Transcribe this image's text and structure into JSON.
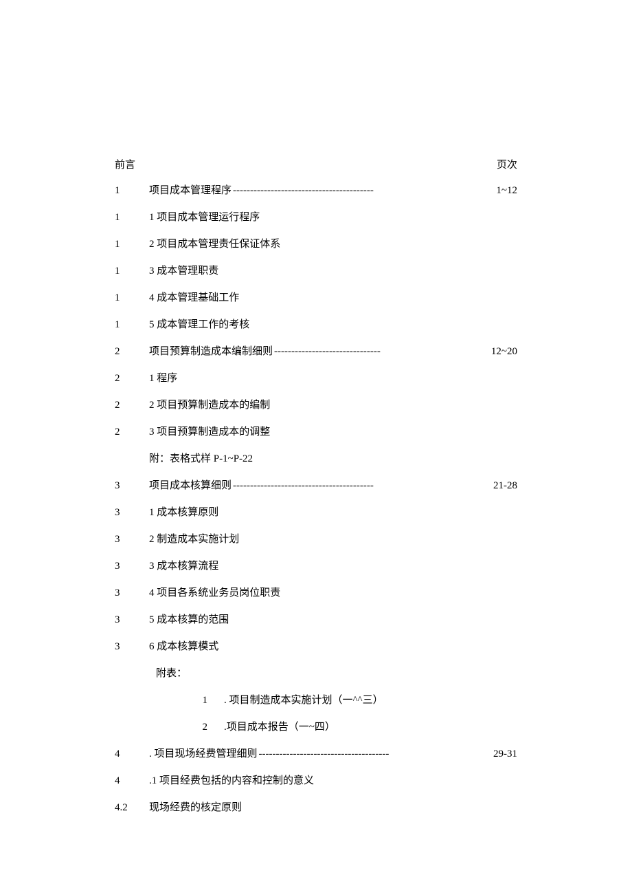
{
  "header": {
    "left": "前言",
    "right": "页次"
  },
  "rows": [
    {
      "num": "1",
      "text": "项目成本管理程序 ",
      "dashes": "-----------------------------------------",
      "page": "1~12"
    },
    {
      "num": "1",
      "text": "1 项目成本管理运行程序"
    },
    {
      "num": "1",
      "text": "2 项目成本管理责任保证体系"
    },
    {
      "num": "1",
      "text": "3 成本管理职责"
    },
    {
      "num": "1",
      "text": "4 成本管理基础工作"
    },
    {
      "num": "1",
      "text": "5 成本管理工作的考核"
    },
    {
      "num": "2",
      "text": "项目预算制造成本编制细则 ",
      "dashes": "-------------------------------",
      "page": "12~20"
    },
    {
      "num": "2",
      "text": "1 程序"
    },
    {
      "num": "2",
      "text": "2 项目预算制造成本的编制"
    },
    {
      "num": "2",
      "text": "3 项目预算制造成本的调整"
    },
    {
      "num": "",
      "text": "  附：表格式样 P-1~P-22",
      "indent": "indent0"
    },
    {
      "num": "3",
      "text": "项目成本核算细则 ",
      "dashes": "-----------------------------------------",
      "page": "21-28"
    },
    {
      "num": "3",
      "text": "1 成本核算原则"
    },
    {
      "num": "3",
      "text": "2 制造成本实施计划"
    },
    {
      "num": "3",
      "text": "3 成本核算流程"
    },
    {
      "num": "3",
      "text": "4 项目各系统业务员岗位职责"
    },
    {
      "num": "3",
      "text": "5 成本核算的范围"
    },
    {
      "num": "3",
      "text": "6 成本核算模式"
    },
    {
      "num": "",
      "text": "附表：",
      "indent": "indent1"
    },
    {
      "num2": "1",
      "text2": ". 项目制造成本实施计划（一^^三）",
      "indent": "indent2"
    },
    {
      "num2": "2",
      "text2": ".项目成本报告（一~四）",
      "indent": "indent2"
    },
    {
      "num": "4",
      "text": ". 项目现场经费管理细则 ",
      "dashes": "--------------------------------------",
      "page": "29-31"
    },
    {
      "num": "4",
      "text": ".1 项目经费包括的内容和控制的意义"
    },
    {
      "num": "4.2",
      "text": "  现场经费的核定原则"
    }
  ],
  "style": {
    "text_color": "#000000",
    "bg_color": "#ffffff",
    "font_size": 15
  }
}
